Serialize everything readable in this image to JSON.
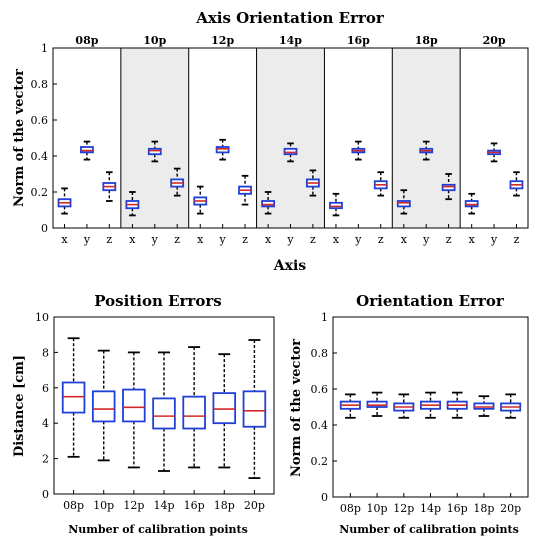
{
  "colors": {
    "box": "#1f3fd6",
    "median": "#d22a2a",
    "whisker": "#000000",
    "shade": "#ececec",
    "axis": "#000000"
  },
  "chart_data": [
    {
      "type": "box",
      "title": "Axis Orientation Error",
      "xlabel": "Axis",
      "ylabel": "Norm of the vector",
      "ylim": [
        0,
        1
      ],
      "yticks": [
        0,
        0.2,
        0.4,
        0.6,
        0.8,
        1
      ],
      "ytick_labels": [
        "0",
        "0.2",
        "0.4",
        "0.6",
        "0.8",
        "1"
      ],
      "groups": [
        "08p",
        "10p",
        "12p",
        "14p",
        "16p",
        "18p",
        "20p"
      ],
      "categories": [
        "x",
        "y",
        "z"
      ],
      "shaded_groups": [
        1,
        3,
        5
      ],
      "series": [
        {
          "group": "08p",
          "boxes": [
            {
              "min": 0.08,
              "q1": 0.12,
              "median": 0.14,
              "q3": 0.16,
              "max": 0.22
            },
            {
              "min": 0.38,
              "q1": 0.42,
              "median": 0.43,
              "q3": 0.45,
              "max": 0.48
            },
            {
              "min": 0.15,
              "q1": 0.21,
              "median": 0.23,
              "q3": 0.25,
              "max": 0.31
            }
          ]
        },
        {
          "group": "10p",
          "boxes": [
            {
              "min": 0.07,
              "q1": 0.11,
              "median": 0.13,
              "q3": 0.15,
              "max": 0.2
            },
            {
              "min": 0.37,
              "q1": 0.41,
              "median": 0.43,
              "q3": 0.44,
              "max": 0.48
            },
            {
              "min": 0.18,
              "q1": 0.23,
              "median": 0.25,
              "q3": 0.27,
              "max": 0.33
            }
          ]
        },
        {
          "group": "12p",
          "boxes": [
            {
              "min": 0.08,
              "q1": 0.13,
              "median": 0.15,
              "q3": 0.17,
              "max": 0.23
            },
            {
              "min": 0.38,
              "q1": 0.42,
              "median": 0.44,
              "q3": 0.45,
              "max": 0.49
            },
            {
              "min": 0.13,
              "q1": 0.19,
              "median": 0.21,
              "q3": 0.23,
              "max": 0.29
            }
          ]
        },
        {
          "group": "14p",
          "boxes": [
            {
              "min": 0.08,
              "q1": 0.12,
              "median": 0.13,
              "q3": 0.15,
              "max": 0.2
            },
            {
              "min": 0.37,
              "q1": 0.41,
              "median": 0.42,
              "q3": 0.44,
              "max": 0.47
            },
            {
              "min": 0.18,
              "q1": 0.23,
              "median": 0.25,
              "q3": 0.27,
              "max": 0.32
            }
          ]
        },
        {
          "group": "16p",
          "boxes": [
            {
              "min": 0.07,
              "q1": 0.11,
              "median": 0.12,
              "q3": 0.14,
              "max": 0.19
            },
            {
              "min": 0.38,
              "q1": 0.42,
              "median": 0.43,
              "q3": 0.44,
              "max": 0.48
            },
            {
              "min": 0.18,
              "q1": 0.22,
              "median": 0.24,
              "q3": 0.26,
              "max": 0.31
            }
          ]
        },
        {
          "group": "18p",
          "boxes": [
            {
              "min": 0.08,
              "q1": 0.12,
              "median": 0.14,
              "q3": 0.15,
              "max": 0.21
            },
            {
              "min": 0.38,
              "q1": 0.42,
              "median": 0.43,
              "q3": 0.44,
              "max": 0.48
            },
            {
              "min": 0.16,
              "q1": 0.21,
              "median": 0.23,
              "q3": 0.24,
              "max": 0.3
            }
          ]
        },
        {
          "group": "20p",
          "boxes": [
            {
              "min": 0.08,
              "q1": 0.12,
              "median": 0.13,
              "q3": 0.15,
              "max": 0.19
            },
            {
              "min": 0.37,
              "q1": 0.41,
              "median": 0.42,
              "q3": 0.43,
              "max": 0.47
            },
            {
              "min": 0.18,
              "q1": 0.22,
              "median": 0.24,
              "q3": 0.26,
              "max": 0.31
            }
          ]
        }
      ]
    },
    {
      "type": "box",
      "title": "Position Errors",
      "xlabel": "Number of calibration points",
      "ylabel": "Distance [cm]",
      "ylim": [
        0,
        10
      ],
      "yticks": [
        0,
        2,
        4,
        6,
        8,
        10
      ],
      "ytick_labels": [
        "0",
        "2",
        "4",
        "6",
        "8",
        "10"
      ],
      "categories": [
        "08p",
        "10p",
        "12p",
        "14p",
        "16p",
        "18p",
        "20p"
      ],
      "boxes": [
        {
          "min": 2.1,
          "q1": 4.6,
          "median": 5.5,
          "q3": 6.3,
          "max": 8.8
        },
        {
          "min": 1.9,
          "q1": 4.1,
          "median": 4.8,
          "q3": 5.8,
          "max": 8.1
        },
        {
          "min": 1.5,
          "q1": 4.1,
          "median": 4.9,
          "q3": 5.9,
          "max": 8.0
        },
        {
          "min": 1.3,
          "q1": 3.7,
          "median": 4.4,
          "q3": 5.4,
          "max": 8.0
        },
        {
          "min": 1.5,
          "q1": 3.7,
          "median": 4.4,
          "q3": 5.5,
          "max": 8.3
        },
        {
          "min": 1.5,
          "q1": 4.0,
          "median": 4.8,
          "q3": 5.7,
          "max": 7.9
        },
        {
          "min": 0.9,
          "q1": 3.8,
          "median": 4.7,
          "q3": 5.8,
          "max": 8.7
        }
      ]
    },
    {
      "type": "box",
      "title": "Orientation Error",
      "xlabel": "Number of calibration points",
      "ylabel": "Norm of the vector",
      "ylim": [
        0,
        1
      ],
      "yticks": [
        0,
        0.2,
        0.4,
        0.6,
        0.8,
        1
      ],
      "ytick_labels": [
        "0",
        "0.2",
        "0.4",
        "0.6",
        "0.8",
        "1"
      ],
      "categories": [
        "08p",
        "10p",
        "12p",
        "14p",
        "16p",
        "18p",
        "20p"
      ],
      "boxes": [
        {
          "min": 0.44,
          "q1": 0.49,
          "median": 0.51,
          "q3": 0.53,
          "max": 0.57
        },
        {
          "min": 0.45,
          "q1": 0.5,
          "median": 0.51,
          "q3": 0.53,
          "max": 0.58
        },
        {
          "min": 0.44,
          "q1": 0.48,
          "median": 0.5,
          "q3": 0.52,
          "max": 0.57
        },
        {
          "min": 0.44,
          "q1": 0.49,
          "median": 0.51,
          "q3": 0.53,
          "max": 0.58
        },
        {
          "min": 0.44,
          "q1": 0.49,
          "median": 0.51,
          "q3": 0.53,
          "max": 0.58
        },
        {
          "min": 0.45,
          "q1": 0.49,
          "median": 0.5,
          "q3": 0.52,
          "max": 0.56
        },
        {
          "min": 0.44,
          "q1": 0.48,
          "median": 0.5,
          "q3": 0.52,
          "max": 0.57
        }
      ]
    }
  ]
}
